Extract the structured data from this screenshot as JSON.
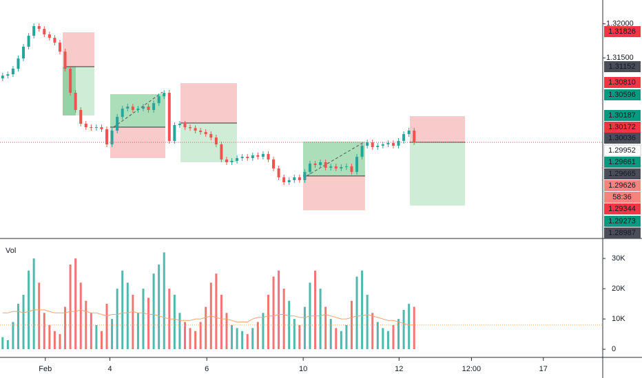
{
  "chart_data": [
    {
      "type": "candlestick",
      "up_color": "#26a69a",
      "down_color": "#ef5350",
      "xlim": [
        -0.5,
        115.2
      ],
      "xticks": [
        {
          "value": 8.2,
          "label": "Feb"
        },
        {
          "value": 20.6,
          "label": "4"
        },
        {
          "value": 39.2,
          "label": "6"
        },
        {
          "value": 57.7,
          "label": "10"
        },
        {
          "value": 76.1,
          "label": "12"
        },
        {
          "value": 90,
          "label": "12:00"
        },
        {
          "value": 103.8,
          "label": "17"
        }
      ],
      "ylim": [
        1.2885,
        1.3235
      ],
      "yticks": [
        {
          "value": 1.32,
          "label": "1.32000"
        },
        {
          "value": 1.315,
          "label": "1.31500"
        }
      ],
      "grid": false,
      "open": [
        1.312,
        1.3124,
        1.3126,
        1.31341,
        1.31492,
        1.31664,
        1.31825,
        1.31967,
        1.31926,
        1.31845,
        1.31795,
        1.31724,
        1.31593,
        1.31341,
        1.30988,
        1.30736,
        1.30534,
        1.30483,
        1.30473,
        1.30483,
        1.30453,
        1.30231,
        1.30433,
        1.30635,
        1.30756,
        1.30786,
        1.30736,
        1.30756,
        1.30786,
        1.30736,
        1.30836,
        1.30937,
        1.30988,
        1.30282,
        1.30514,
        1.30534,
        1.30483,
        1.3047,
        1.30433,
        1.30413,
        1.30382,
        1.30332,
        1.30231,
        1.30009,
        1.29969,
        1.29989,
        1.30029,
        1.30049,
        1.30029,
        1.3007,
        1.30049,
        1.3009,
        1.30009,
        1.29878,
        1.29747,
        1.29676,
        1.29706,
        1.29747,
        1.29706,
        1.29827,
        1.29949,
        1.29928,
        1.29969,
        1.29888,
        1.29908,
        1.29878,
        1.29898,
        1.29908,
        1.29827,
        1.30049,
        1.30211,
        1.30261,
        1.30191,
        1.30211,
        1.30231,
        1.30251,
        1.30211,
        1.30282,
        1.30382,
        1.30433
      ],
      "high": [
        1.3128,
        1.313,
        1.31381,
        1.31532,
        1.31704,
        1.31865,
        1.32007,
        1.32007,
        1.31966,
        1.31885,
        1.31835,
        1.31764,
        1.31633,
        1.31381,
        1.31028,
        1.30776,
        1.30574,
        1.30523,
        1.30523,
        1.30523,
        1.30493,
        1.30473,
        1.30675,
        1.30796,
        1.30826,
        1.30826,
        1.30796,
        1.30826,
        1.30826,
        1.30876,
        1.30977,
        1.31028,
        1.31028,
        1.30554,
        1.30574,
        1.30574,
        1.30523,
        1.3051,
        1.30473,
        1.30453,
        1.30422,
        1.30372,
        1.30271,
        1.30049,
        1.30029,
        1.30069,
        1.30089,
        1.30089,
        1.3011,
        1.3011,
        1.3013,
        1.3013,
        1.30049,
        1.29918,
        1.29787,
        1.29746,
        1.29787,
        1.29787,
        1.29867,
        1.29989,
        1.29989,
        1.30009,
        1.30009,
        1.29948,
        1.29948,
        1.29938,
        1.29948,
        1.29948,
        1.30089,
        1.30251,
        1.30301,
        1.30301,
        1.30251,
        1.30271,
        1.30291,
        1.30291,
        1.30322,
        1.30422,
        1.30473,
        1.30473
      ],
      "low": [
        1.3116,
        1.312,
        1.3122,
        1.31301,
        1.31452,
        1.31624,
        1.31785,
        1.31886,
        1.31805,
        1.31755,
        1.31684,
        1.31553,
        1.31301,
        1.30948,
        1.30696,
        1.30494,
        1.30443,
        1.30433,
        1.30433,
        1.30413,
        1.30191,
        1.30191,
        1.30393,
        1.30595,
        1.30716,
        1.30696,
        1.30696,
        1.30716,
        1.30696,
        1.30696,
        1.30796,
        1.30897,
        1.30242,
        1.30242,
        1.30474,
        1.30443,
        1.3043,
        1.30393,
        1.30373,
        1.30342,
        1.30292,
        1.30191,
        1.29969,
        1.29929,
        1.29929,
        1.29949,
        1.29989,
        1.29989,
        1.29989,
        1.30009,
        1.30009,
        1.29969,
        1.29838,
        1.29707,
        1.29636,
        1.29636,
        1.29666,
        1.29666,
        1.29666,
        1.29787,
        1.29888,
        1.29888,
        1.29848,
        1.29848,
        1.29838,
        1.29838,
        1.29858,
        1.29787,
        1.29787,
        1.30009,
        1.30171,
        1.30151,
        1.30151,
        1.30171,
        1.30191,
        1.30171,
        1.30171,
        1.30242,
        1.30342,
        1.30221
      ],
      "close": [
        1.3124,
        1.3126,
        1.31341,
        1.31492,
        1.31664,
        1.31825,
        1.31967,
        1.31926,
        1.31845,
        1.31795,
        1.31724,
        1.31593,
        1.31341,
        1.30988,
        1.30736,
        1.30534,
        1.30483,
        1.30473,
        1.30483,
        1.30453,
        1.30231,
        1.30433,
        1.30635,
        1.30756,
        1.30786,
        1.30736,
        1.30756,
        1.30786,
        1.30736,
        1.30836,
        1.30937,
        1.30988,
        1.30282,
        1.30514,
        1.30534,
        1.30483,
        1.3047,
        1.30433,
        1.30413,
        1.30382,
        1.30332,
        1.30231,
        1.30009,
        1.29969,
        1.29989,
        1.30029,
        1.30049,
        1.30029,
        1.3007,
        1.30049,
        1.3009,
        1.30009,
        1.29878,
        1.29747,
        1.29676,
        1.29706,
        1.29747,
        1.29706,
        1.29827,
        1.29949,
        1.29928,
        1.29969,
        1.29888,
        1.29908,
        1.29878,
        1.29898,
        1.29908,
        1.29827,
        1.30049,
        1.30211,
        1.30261,
        1.30191,
        1.30211,
        1.30231,
        1.30251,
        1.30211,
        1.30282,
        1.30382,
        1.30433,
        1.30261
      ],
      "price_tags": [
        {
          "label": "1.31826",
          "color": "#f23645"
        },
        {
          "label": "1.31152",
          "color": "#4a4e59"
        },
        {
          "label": "1.30810",
          "color": "#f23645"
        },
        {
          "label": "1.30596",
          "color": "#089981"
        },
        {
          "label": "1.30187",
          "color": "#089981"
        },
        {
          "label": "1.30172",
          "color": "#f23645"
        },
        {
          "label": "1.30036",
          "color": "#4a4e59"
        },
        {
          "label": "1.29952",
          "color": "#ffffff"
        },
        {
          "label": "1.29661",
          "color": "#089981"
        },
        {
          "label": "1.29665",
          "color": "#4a4e59"
        },
        {
          "label": "1.29626",
          "color": "#f7837f"
        },
        {
          "label": "58:36",
          "color": "#f7837f"
        },
        {
          "label": "1.29344",
          "color": "#f23645"
        },
        {
          "label": "1.29273",
          "color": "#089981"
        },
        {
          "label": "1.28987",
          "color": "#4a4e59"
        }
      ]
    },
    {
      "type": "bar",
      "title": "Vol",
      "ylim": [
        -2700,
        36600
      ],
      "yticks": [
        {
          "value": 30000,
          "label": "30K"
        },
        {
          "value": 20000,
          "label": "20K"
        },
        {
          "value": 10000,
          "label": "10K"
        },
        0
      ],
      "values": [
        4000,
        3000,
        9000,
        15000,
        18000,
        26000,
        30000,
        22000,
        12000,
        8000,
        6000,
        5000,
        14000,
        28000,
        30000,
        22000,
        16000,
        12000,
        8000,
        6000,
        15000,
        10000,
        20000,
        26000,
        22000,
        18000,
        12000,
        20000,
        17000,
        25000,
        28000,
        32000,
        20000,
        18000,
        12000,
        9000,
        7000,
        6000,
        9000,
        14000,
        22000,
        25000,
        18000,
        12000,
        8000,
        7000,
        6000,
        5000,
        7000,
        9000,
        12000,
        18000,
        24000,
        26000,
        20000,
        16000,
        10000,
        8000,
        14000,
        22000,
        26000,
        20000,
        14000,
        10000,
        7000,
        6000,
        8000,
        16000,
        24000,
        26000,
        18000,
        12000,
        9000,
        7000,
        6000,
        8000,
        10000,
        13000,
        15000,
        14000
      ],
      "ma": [
        12000,
        12000,
        12500,
        12500,
        12000,
        12500,
        13000,
        13000,
        13000,
        12500,
        12000,
        12000,
        12000,
        12500,
        12500,
        13000,
        12500,
        12000,
        12000,
        11500,
        11000,
        11500,
        11500,
        12000,
        12000,
        12500,
        12000,
        12000,
        11500,
        11500,
        11000,
        10500,
        10000,
        10000,
        9500,
        9500,
        9500,
        10000,
        10000,
        10500,
        11000,
        10500,
        10000,
        10000,
        9500,
        9000,
        9000,
        9000,
        10000,
        10500,
        10500,
        11000,
        11000,
        11500,
        11500,
        11000,
        11000,
        10500,
        10500,
        11000,
        11000,
        11000,
        11500,
        11000,
        10500,
        10000,
        10000,
        10500,
        11000,
        11000,
        11500,
        11000,
        10500,
        10000,
        9500,
        9500,
        9000,
        8500,
        8000,
        8000
      ],
      "ma_color": "#f7a26b"
    }
  ]
}
